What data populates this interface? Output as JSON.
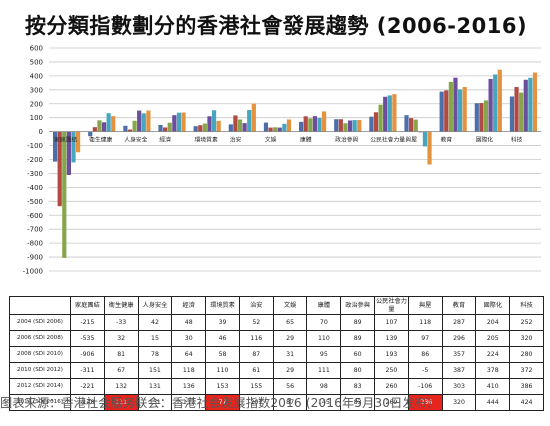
{
  "caption": "图表来源：香港社会服务联会：香港社会发展指数2016 (2016年5月30日发布)",
  "colors": {
    "series": [
      "#4d6fa8",
      "#b24a44",
      "#87a64b",
      "#6b4f9c",
      "#46a6c0",
      "#e3923f"
    ],
    "highlight": "#e8251d",
    "grid": "#c8c8c8",
    "text": "#222222"
  },
  "chart_data": {
    "type": "bar",
    "title": "按分類指數劃分的香港社會發展趨勢 (2006-2016)",
    "xlabel": "",
    "ylabel": "",
    "ylim": [
      -1000,
      600
    ],
    "yticks": [
      -1000,
      -900,
      -800,
      -700,
      -600,
      -500,
      -400,
      -300,
      -200,
      -100,
      0,
      100,
      200,
      300,
      400,
      500,
      600
    ],
    "grid": true,
    "legend": "none",
    "categories": [
      "家庭團結",
      "衛生健康",
      "人身安全",
      "經濟",
      "環境質素",
      "治安",
      "文娛",
      "康體",
      "政治參與",
      "公民社會力量",
      "與屋",
      "教育",
      "國際化",
      "科技"
    ],
    "series": [
      {
        "label": "2004 (SDI 2006)",
        "values": [
          -215,
          -33,
          42,
          48,
          39,
          52,
          65,
          70,
          89,
          107,
          118,
          287,
          204,
          252
        ]
      },
      {
        "label": "2006 (SDI 2008)",
        "values": [
          -535,
          32,
          15,
          30,
          46,
          116,
          29,
          110,
          89,
          139,
          97,
          296,
          205,
          320
        ]
      },
      {
        "label": "2008 (SDI 2010)",
        "values": [
          -906,
          81,
          78,
          64,
          58,
          87,
          31,
          95,
          60,
          193,
          86,
          357,
          224,
          280
        ]
      },
      {
        "label": "2010 (SDI 2012)",
        "values": [
          -311,
          67,
          151,
          118,
          110,
          61,
          29,
          111,
          80,
          250,
          -5,
          387,
          378,
          372
        ]
      },
      {
        "label": "2012 (SDI 2014)",
        "values": [
          -221,
          132,
          131,
          136,
          153,
          155,
          56,
          98,
          83,
          260,
          -106,
          303,
          410,
          386
        ]
      },
      {
        "label": "2014 (SDI 2016)",
        "values": [
          -148,
          111,
          151,
          137,
          77,
          201,
          87,
          145,
          83,
          269,
          -236,
          320,
          444,
          424
        ]
      }
    ],
    "highlighted_cells": [
      [
        5,
        1
      ],
      [
        5,
        4
      ],
      [
        5,
        10
      ]
    ]
  }
}
